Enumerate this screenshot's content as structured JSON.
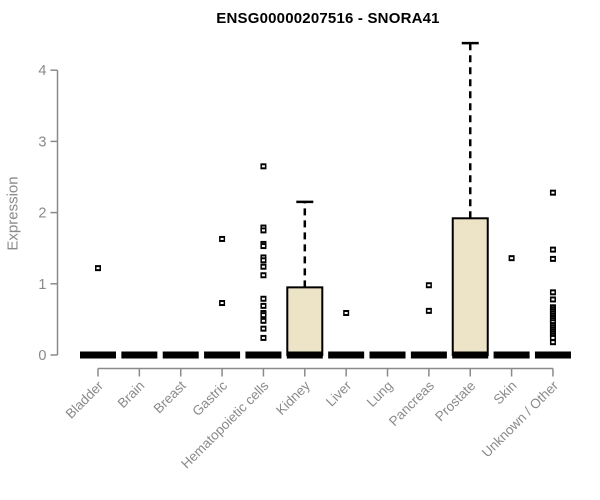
{
  "chart_data": {
    "type": "boxplot",
    "title": "ENSG00000207516 - SNORA41",
    "ylabel": "Expression",
    "xlabel": "",
    "yticks": [
      0,
      1,
      2,
      3,
      4
    ],
    "ylim": [
      0,
      4.5
    ],
    "grid": false,
    "legend": null,
    "colors": {
      "box_fill": "#ede3c7",
      "box_border": "#000000",
      "median": "#000000",
      "axis": "#8a8a8a",
      "title": "#000000"
    },
    "categories": [
      "Bladder",
      "Brain",
      "Breast",
      "Gastric",
      "Hematopoietic cells",
      "Kidney",
      "Liver",
      "Lung",
      "Pancreas",
      "Prostate",
      "Skin",
      "Unknown / Other"
    ],
    "boxes": [
      {
        "category": "Bladder",
        "lower": 0,
        "q1": 0,
        "median": 0,
        "q3": 0,
        "upper": 0,
        "outliers": [
          1.22
        ]
      },
      {
        "category": "Brain",
        "lower": 0,
        "q1": 0,
        "median": 0,
        "q3": 0,
        "upper": 0,
        "outliers": []
      },
      {
        "category": "Breast",
        "lower": 0,
        "q1": 0,
        "median": 0,
        "q3": 0,
        "upper": 0,
        "outliers": []
      },
      {
        "category": "Gastric",
        "lower": 0,
        "q1": 0,
        "median": 0,
        "q3": 0,
        "upper": 0,
        "outliers": [
          1.63,
          0.73
        ]
      },
      {
        "category": "Hematopoietic cells",
        "lower": 0,
        "q1": 0,
        "median": 0,
        "q3": 0,
        "upper": 0,
        "outliers": [
          2.65,
          1.79,
          1.75,
          1.56,
          1.53,
          1.37,
          1.33,
          1.24,
          1.12,
          0.79,
          0.69,
          0.59,
          0.56,
          0.48,
          0.37,
          0.24
        ]
      },
      {
        "category": "Kidney",
        "lower": 0,
        "q1": 0,
        "median": 0,
        "q3": 0.95,
        "upper": 2.15,
        "outliers": []
      },
      {
        "category": "Liver",
        "lower": 0,
        "q1": 0,
        "median": 0,
        "q3": 0,
        "upper": 0,
        "outliers": [
          0.59
        ]
      },
      {
        "category": "Lung",
        "lower": 0,
        "q1": 0,
        "median": 0,
        "q3": 0,
        "upper": 0,
        "outliers": []
      },
      {
        "category": "Pancreas",
        "lower": 0,
        "q1": 0,
        "median": 0,
        "q3": 0,
        "upper": 0,
        "outliers": [
          0.98,
          0.62
        ]
      },
      {
        "category": "Prostate",
        "lower": 0,
        "q1": 0,
        "median": 0,
        "q3": 1.92,
        "upper": 4.38,
        "outliers": []
      },
      {
        "category": "Skin",
        "lower": 0,
        "q1": 0,
        "median": 0,
        "q3": 0,
        "upper": 0,
        "outliers": [
          1.36
        ]
      },
      {
        "category": "Unknown / Other",
        "lower": 0,
        "q1": 0,
        "median": 0,
        "q3": 0,
        "upper": 0,
        "outliers": [
          2.28,
          1.48,
          1.35,
          0.88,
          0.78,
          0.67,
          0.64,
          0.61,
          0.58,
          0.55,
          0.52,
          0.49,
          0.46,
          0.42,
          0.39,
          0.36,
          0.33,
          0.3,
          0.27,
          0.24,
          0.18
        ]
      }
    ]
  }
}
